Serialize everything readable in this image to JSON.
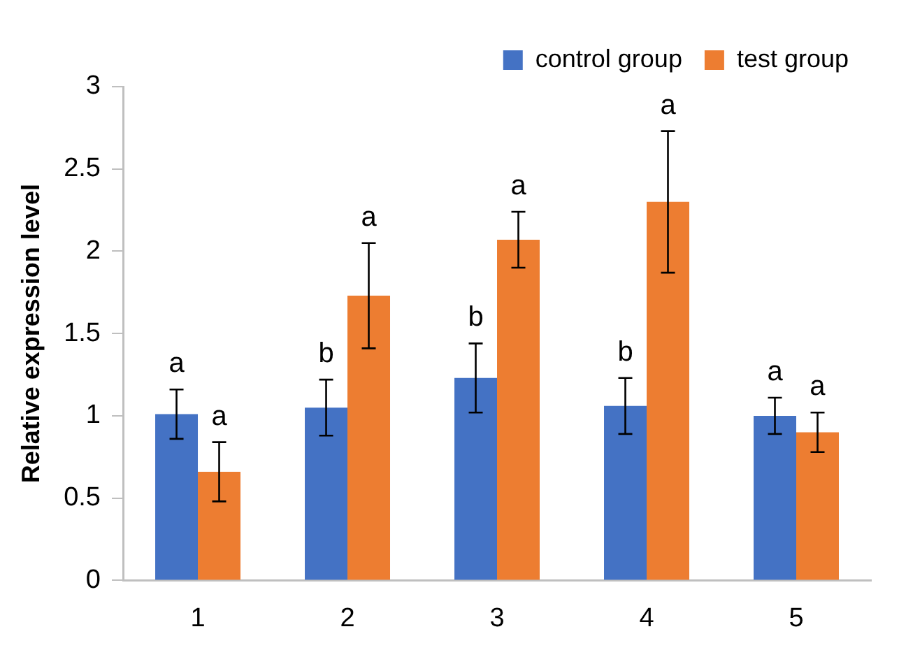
{
  "chart_data": {
    "type": "bar",
    "ylabel": "Relative expression level",
    "categories": [
      "1",
      "2",
      "3",
      "4",
      "5"
    ],
    "series": [
      {
        "name": "control group",
        "color": "#4472c4",
        "values": [
          1.01,
          1.05,
          1.23,
          1.06,
          1.0
        ],
        "errors": [
          0.15,
          0.17,
          0.21,
          0.17,
          0.11
        ]
      },
      {
        "name": "test group",
        "color": "#ed7d31",
        "values": [
          0.66,
          1.73,
          2.07,
          2.3,
          0.9
        ],
        "errors": [
          0.18,
          0.32,
          0.17,
          0.43,
          0.12
        ]
      }
    ],
    "ylim": [
      0,
      3
    ],
    "yticks": [
      0,
      0.5,
      1,
      1.5,
      2,
      2.5,
      3
    ],
    "grid": false,
    "legend": "top",
    "annotations": [
      "a",
      "a",
      "b",
      "a",
      "b",
      "a",
      "b",
      "a",
      "a",
      "a"
    ]
  }
}
